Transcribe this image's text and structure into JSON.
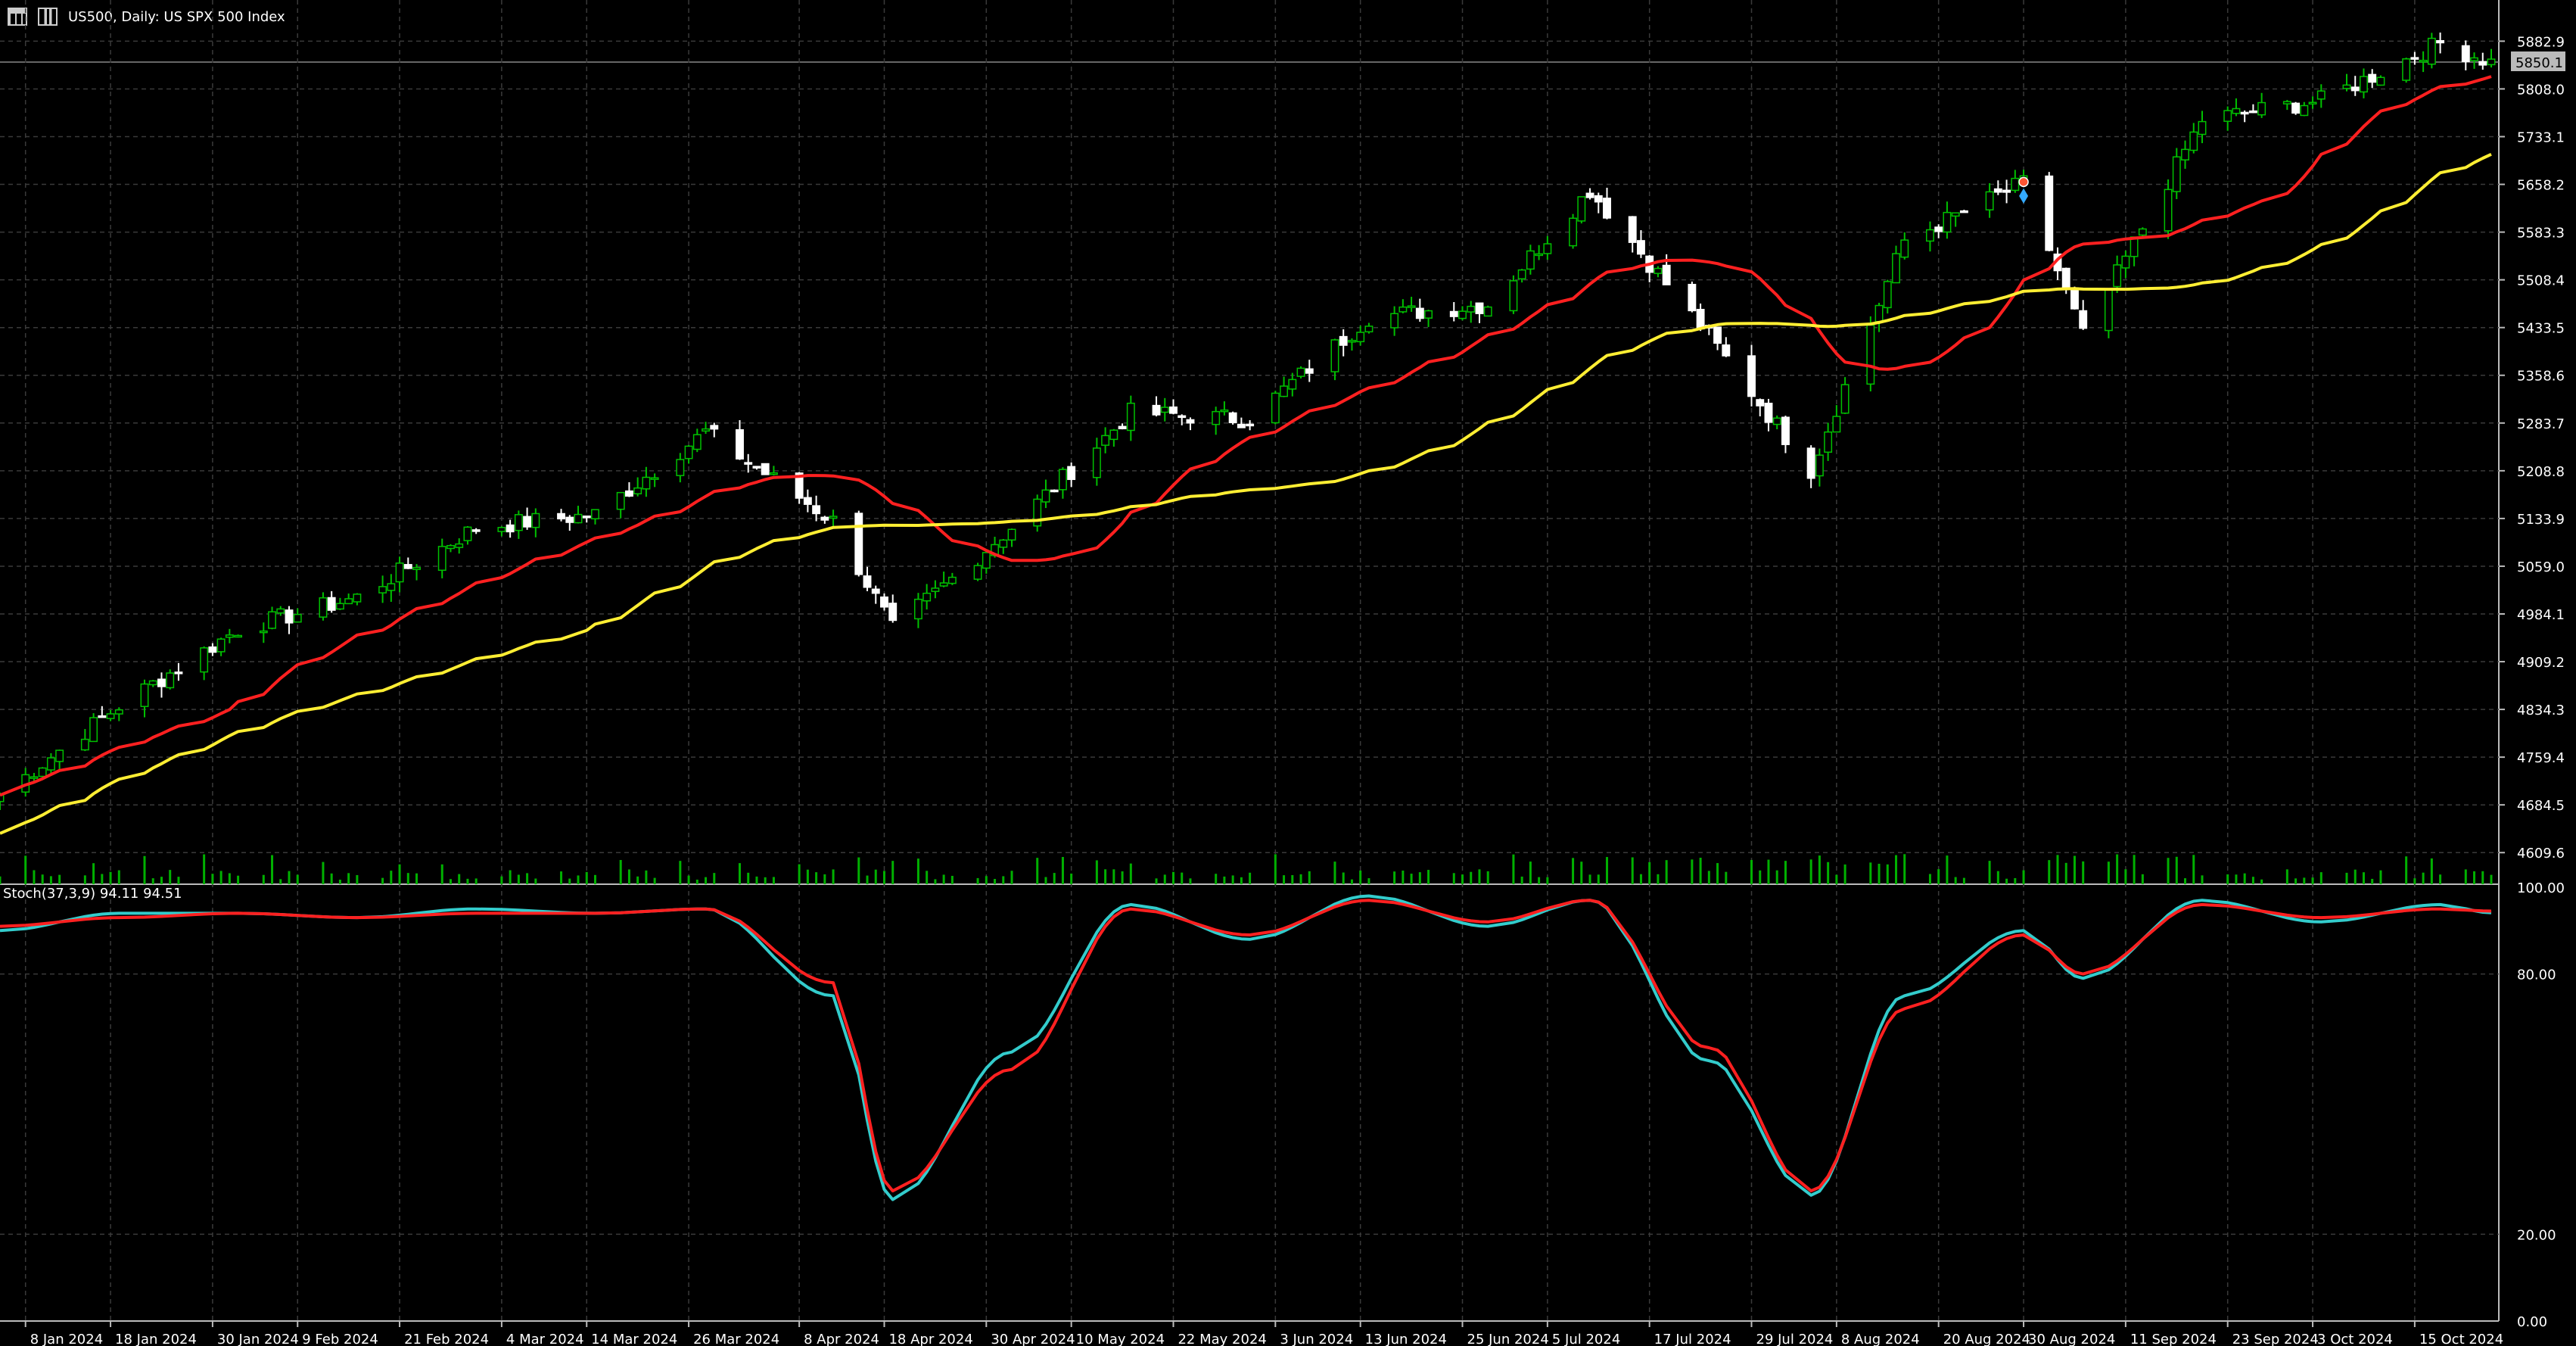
{
  "header": {
    "symbol_line": "US500, Daily:  US SPX 500 Index",
    "icons": [
      "chart-window-icon",
      "candlestick-icon"
    ]
  },
  "price_axis": {
    "labels": [
      "5882.9",
      "5808.0",
      "5733.1",
      "5658.2",
      "5583.3",
      "5508.4",
      "5433.5",
      "5358.6",
      "5283.7",
      "5208.8",
      "5133.9",
      "5059.0",
      "4984.1",
      "4909.2",
      "4834.3",
      "4759.4",
      "4684.5",
      "4609.6"
    ],
    "current_price": "5850.1"
  },
  "stoch_axis": {
    "labels": [
      "100.00",
      "80.00",
      "20.00",
      "0.00"
    ]
  },
  "stoch_label": "Stoch(37,3,9) 94.11 94.51",
  "time_axis": {
    "labels": [
      "8 Jan 2024",
      "18 Jan 2024",
      "30 Jan 2024",
      "9 Feb 2024",
      "21 Feb 2024",
      "4 Mar 2024",
      "14 Mar 2024",
      "26 Mar 2024",
      "8 Apr 2024",
      "18 Apr 2024",
      "30 Apr 2024",
      "10 May 2024",
      "22 May 2024",
      "3 Jun 2024",
      "13 Jun 2024",
      "25 Jun 2024",
      "5 Jul 2024",
      "17 Jul 2024",
      "29 Jul 2024",
      "8 Aug 2024",
      "20 Aug 2024",
      "30 Aug 2024",
      "11 Sep 2024",
      "23 Sep 2024",
      "3 Oct 2024",
      "15 Oct 2024"
    ]
  },
  "colors": {
    "background": "#000000",
    "grid": "#3a3a3a",
    "bull_candle": "#00c000",
    "bear_candle": "#ffffff",
    "ma_fast": "#ff2020",
    "ma_slow": "#ffee33",
    "stoch_main": "#33cccc",
    "stoch_signal": "#ff2020",
    "volume": "#00b000",
    "axis_text": "#ffffff"
  },
  "chart_data": [
    {
      "type": "candlestick",
      "title": "US500, Daily:  US SPX 500 Index",
      "ylim": [
        4560,
        5900
      ],
      "x_range": [
        "5 Jan 2024",
        "24 Oct 2024"
      ],
      "close_series": {
        "name": "",
        "x": [
          "2024-01-05",
          "2024-01-19",
          "2024-02-02",
          "2024-02-16",
          "2024-03-01",
          "2024-03-15",
          "2024-03-28",
          "2024-04-12",
          "2024-04-19",
          "2024-05-03",
          "2024-05-17",
          "2024-05-31",
          "2024-06-14",
          "2024-06-28",
          "2024-07-10",
          "2024-07-24",
          "2024-08-05",
          "2024-08-16",
          "2024-08-30",
          "2024-09-06",
          "2024-09-20",
          "2024-10-04",
          "2024-10-18",
          "2024-10-24"
        ],
        "y": [
          4700,
          4840,
          4960,
          5010,
          5120,
          5140,
          5270,
          5130,
          4960,
          5120,
          5300,
          5290,
          5450,
          5470,
          5650,
          5420,
          5210,
          5570,
          5660,
          5420,
          5760,
          5790,
          5880,
          5850
        ]
      },
      "ma_fast_color": "#ff2020",
      "ma_slow_color": "#ffee33",
      "grid": true
    },
    {
      "type": "line",
      "title": "Stoch(37,3,9) 94.11 94.51",
      "ylim": [
        0,
        100
      ],
      "series": [
        {
          "name": "",
          "x": [
            "2024-01-05",
            "2024-01-19",
            "2024-02-02",
            "2024-02-16",
            "2024-03-01",
            "2024-03-15",
            "2024-03-28",
            "2024-04-12",
            "2024-04-19",
            "2024-05-03",
            "2024-05-17",
            "2024-05-31",
            "2024-06-14",
            "2024-06-28",
            "2024-07-10",
            "2024-07-24",
            "2024-08-05",
            "2024-08-16",
            "2024-08-30",
            "2024-09-06",
            "2024-09-20",
            "2024-10-04",
            "2024-10-18",
            "2024-10-24"
          ],
          "values": [
            90,
            94,
            94,
            93,
            95,
            94,
            95,
            75,
            28,
            62,
            96,
            88,
            98,
            91,
            97,
            60,
            29,
            75,
            90,
            79,
            97,
            92,
            96,
            94.11
          ]
        },
        {
          "name": "",
          "x": [
            "2024-01-05",
            "2024-01-19",
            "2024-02-02",
            "2024-02-16",
            "2024-03-01",
            "2024-03-15",
            "2024-03-28",
            "2024-04-12",
            "2024-04-19",
            "2024-05-03",
            "2024-05-17",
            "2024-05-31",
            "2024-06-14",
            "2024-06-28",
            "2024-07-10",
            "2024-07-24",
            "2024-08-05",
            "2024-08-16",
            "2024-08-30",
            "2024-09-06",
            "2024-09-20",
            "2024-10-04",
            "2024-10-18",
            "2024-10-24"
          ],
          "values": [
            91,
            93,
            94,
            93,
            94,
            94,
            95,
            78,
            30,
            58,
            95,
            89,
            97,
            92,
            97,
            63,
            30,
            72,
            89,
            80,
            96,
            93,
            95,
            94.51
          ]
        }
      ],
      "reference_lines": [
        80,
        20
      ],
      "grid": true
    }
  ]
}
